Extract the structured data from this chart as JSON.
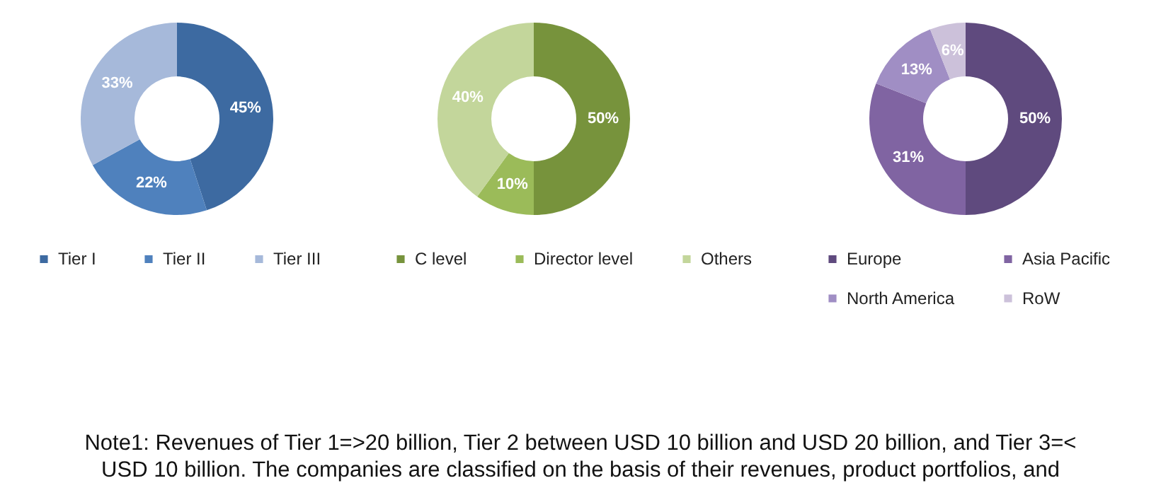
{
  "chart_data": [
    {
      "type": "donut",
      "categories": [
        "Tier I",
        "Tier II",
        "Tier III"
      ],
      "values": [
        45,
        22,
        33
      ],
      "value_labels": [
        "45%",
        "22%",
        "33%"
      ],
      "colors": [
        "#3d6aa1",
        "#4f81bd",
        "#a6b9da"
      ],
      "legend": "bottom"
    },
    {
      "type": "donut",
      "categories": [
        "C level",
        "Director level",
        "Others"
      ],
      "values": [
        50,
        10,
        40
      ],
      "value_labels": [
        "50%",
        "10%",
        "40%"
      ],
      "colors": [
        "#77933c",
        "#9bbb59",
        "#c3d69b"
      ],
      "legend": "bottom"
    },
    {
      "type": "donut",
      "categories": [
        "Europe",
        "Asia Pacific",
        "North America",
        "RoW"
      ],
      "values": [
        50,
        31,
        13,
        6
      ],
      "value_labels": [
        "50%",
        "31%",
        "13%",
        "6%"
      ],
      "colors": [
        "#5f4a7e",
        "#8064a2",
        "#a08ec4",
        "#ccc1da"
      ],
      "legend": "bottom"
    },
    {
      "type": "other",
      "annotations": [
        "Note1: Revenues of Tier 1=>20 billion, Tier 2 between USD 10 billion and USD 20 billion, and Tier 3=<",
        "USD 10 billion. The companies are classified on the basis of their revenues, product portfolios, and"
      ]
    }
  ]
}
